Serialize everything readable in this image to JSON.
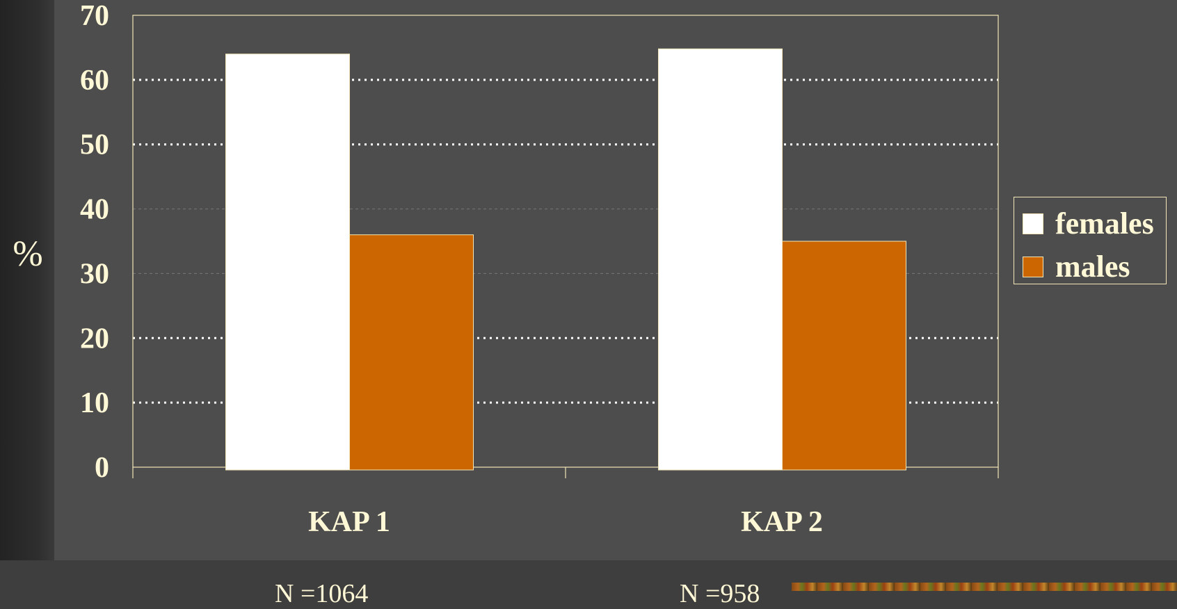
{
  "chart_data": {
    "type": "bar",
    "categories": [
      "KAP 1",
      "KAP 2"
    ],
    "series": [
      {
        "name": "females",
        "values": [
          64,
          64.8
        ],
        "color": "#ffffff"
      },
      {
        "name": "males",
        "values": [
          36,
          35
        ],
        "color": "#cc6600"
      }
    ],
    "ylabel": "%",
    "ylim": [
      0,
      70
    ],
    "yticks": [
      0,
      10,
      20,
      30,
      40,
      50,
      60,
      70
    ],
    "grid": true,
    "legend_position": "right",
    "annotations": [
      "N =1064",
      "N =958"
    ]
  },
  "colors": {
    "background": "#4d4d4d",
    "text": "#fff8d6",
    "axis": "#f2e6b8"
  }
}
